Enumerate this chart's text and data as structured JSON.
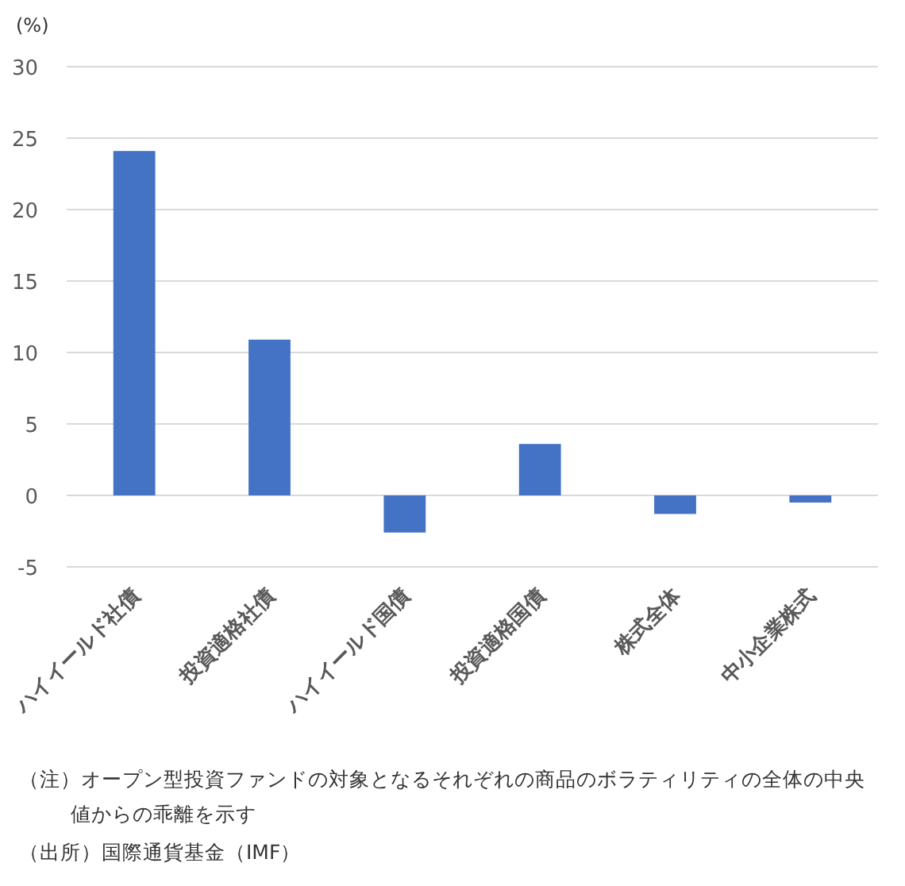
{
  "chart_data": {
    "type": "bar",
    "ylabel": "(%)",
    "categories": [
      "ハイイールド社債",
      "投資適格社債",
      "ハイイールド国債",
      "投資適格国債",
      "株式全体",
      "中小企業株式"
    ],
    "values": [
      24.1,
      10.9,
      -2.6,
      3.6,
      -1.3,
      -0.5
    ],
    "color": "#4472c4",
    "ylim": [
      -5,
      30
    ],
    "yticks": [
      -5,
      0,
      5,
      10,
      15,
      20,
      25,
      30
    ],
    "grid": "y",
    "annotations": [
      "（注）オープン型投資ファンドの対象となるそれぞれの商品のボラティリティの全体の中央値からの乖離を示す",
      "（出所）国際通貨基金（IMF）"
    ]
  }
}
